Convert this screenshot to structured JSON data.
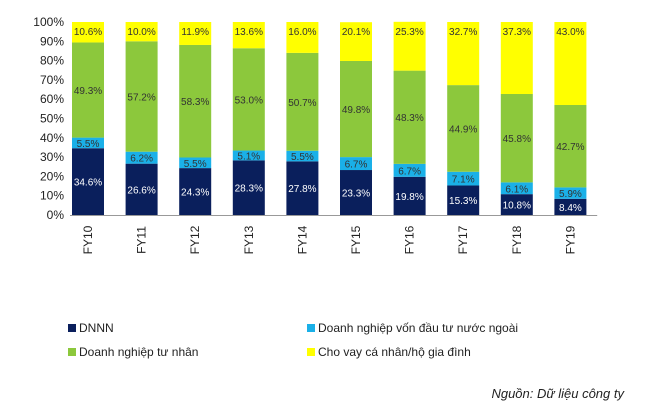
{
  "chart_data": {
    "type": "bar",
    "stacked": true,
    "categories": [
      "FY10",
      "FY11",
      "FY12",
      "FY13",
      "FY14",
      "FY15",
      "FY16",
      "FY17",
      "FY18",
      "FY19"
    ],
    "series": [
      {
        "name": "DNNN",
        "color": "#0a1f5c",
        "values": [
          34.6,
          26.6,
          24.3,
          28.3,
          27.8,
          23.3,
          19.8,
          15.3,
          10.8,
          8.4
        ]
      },
      {
        "name": "Doanh nghiệp vốn đầu tư nước ngoài",
        "color": "#1ab0e8",
        "values": [
          5.5,
          6.2,
          5.5,
          5.1,
          5.5,
          6.7,
          6.7,
          7.1,
          6.1,
          5.9
        ]
      },
      {
        "name": "Doanh nghiệp tư nhân",
        "color": "#8cc83c",
        "values": [
          49.3,
          57.2,
          58.3,
          53.0,
          50.7,
          49.8,
          48.3,
          44.9,
          45.8,
          42.7
        ]
      },
      {
        "name": "Cho vay cá nhân/hộ gia đình",
        "color": "#ffff00",
        "values": [
          10.6,
          10.0,
          11.9,
          13.6,
          16.0,
          20.1,
          25.3,
          32.7,
          37.3,
          43.0
        ]
      }
    ],
    "labels": [
      [
        "34.6%",
        "26.6%",
        "24.3%",
        "28.3%",
        "27.8%",
        "23.3%",
        "19.8%",
        "15.3%",
        "10.8%",
        "8.4%"
      ],
      [
        "5.5%",
        "6.2%",
        "5.5%",
        "5.1%",
        "5.5%",
        "6.7%",
        "6.7%",
        "7.1%",
        "6.1%",
        "5.9%"
      ],
      [
        "49.3%",
        "57.2%",
        "58.3%",
        "53.0%",
        "50.7%",
        "49.8%",
        "48.3%",
        "44.9%",
        "45.8%",
        "42.7%"
      ],
      [
        "10.6%",
        "10.0%",
        "11.9%",
        "13.6%",
        "16.0%",
        "20.1%",
        "25.3%",
        "32.7%",
        "37.3%",
        "43.0%"
      ]
    ],
    "ylim": [
      0,
      100
    ],
    "yticks": [
      "0%",
      "10%",
      "20%",
      "30%",
      "40%",
      "50%",
      "60%",
      "70%",
      "80%",
      "90%",
      "100%"
    ],
    "legend_position": "bottom",
    "title": "",
    "xlabel": "",
    "ylabel": ""
  },
  "legend": [
    {
      "label": "DNNN",
      "color": "#0a1f5c"
    },
    {
      "label": "Doanh nghiệp vốn đầu tư nước ngoài",
      "color": "#1ab0e8"
    },
    {
      "label": "Doanh nghiệp tư nhân",
      "color": "#8cc83c"
    },
    {
      "label": "Cho vay cá nhân/hộ gia đình",
      "color": "#ffff00"
    }
  ],
  "source_note": "Nguồn: Dữ liệu công ty"
}
